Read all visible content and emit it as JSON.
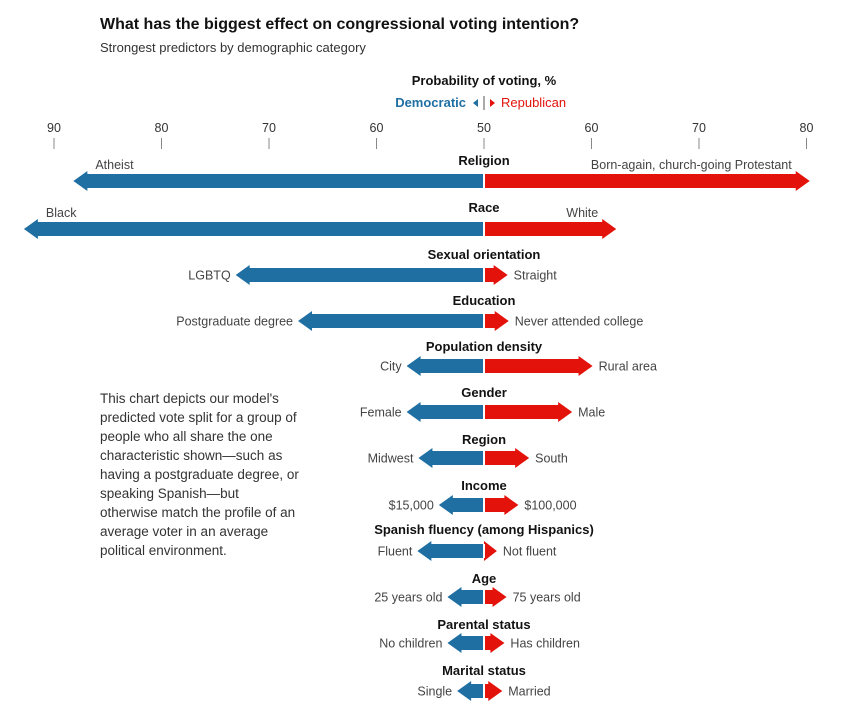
{
  "title": "What has the biggest effect on congressional voting intention?",
  "subtitle": "Strongest predictors by demographic category",
  "note": "This chart depicts our model's predicted vote split for a group of people who all share the one characteristic shown—such as having a postgraduate degree, or speaking Spanish—but otherwise match the profile of an average voter in an average political environment.",
  "chart_data": {
    "type": "bar",
    "subtype": "diverging-arrow",
    "axis_title": "Probability of voting, %",
    "legend": {
      "left": "Democratic",
      "right": "Republican",
      "placement": "top-center"
    },
    "colors": {
      "Democratic": "#1f6fa3",
      "Republican": "#e3120b"
    },
    "ticks_left": [
      90,
      80,
      70,
      60,
      50
    ],
    "ticks_right": [
      60,
      70,
      80
    ],
    "tick_labels": [
      "90",
      "80",
      "70",
      "60",
      "50",
      "60",
      "70",
      "80"
    ],
    "xlim_democratic": [
      90,
      50
    ],
    "xlim_republican": [
      50,
      80
    ],
    "categories": [
      {
        "name": "Religion",
        "dem_label": "Atheist",
        "dem": 88.2,
        "rep_label": "Born-again, church-going Protestant",
        "rep": 80.3
      },
      {
        "name": "Race",
        "dem_label": "Black",
        "dem": 92.8,
        "rep_label": "White",
        "rep": 62.3
      },
      {
        "name": "Sexual orientation",
        "dem_label": "LGBTQ",
        "dem": 73.1,
        "rep_label": "Straight",
        "rep": 52.2
      },
      {
        "name": "Education",
        "dem_label": "Postgraduate degree",
        "dem": 67.3,
        "rep_label": "Never attended college",
        "rep": 52.3
      },
      {
        "name": "Population density",
        "dem_label": "City",
        "dem": 57.2,
        "rep_label": "Rural area",
        "rep": 60.1
      },
      {
        "name": "Gender",
        "dem_label": "Female",
        "dem": 57.2,
        "rep_label": "Male",
        "rep": 58.2
      },
      {
        "name": "Region",
        "dem_label": "Midwest",
        "dem": 56.1,
        "rep_label": "South",
        "rep": 54.2
      },
      {
        "name": "Income",
        "dem_label": "$15,000",
        "dem": 54.2,
        "rep_label": "$100,000",
        "rep": 53.2
      },
      {
        "name": "Spanish fluency (among Hispanics)",
        "dem_label": "Fluent",
        "dem": 56.2,
        "rep_label": "Not fluent",
        "rep": 51.2
      },
      {
        "name": "Age",
        "dem_label": "25 years old",
        "dem": 53.4,
        "rep_label": "75 years old",
        "rep": 52.1
      },
      {
        "name": "Parental status",
        "dem_label": "No children",
        "dem": 53.4,
        "rep_label": "Has children",
        "rep": 51.9
      },
      {
        "name": "Marital status",
        "dem_label": "Single",
        "dem": 52.5,
        "rep_label": "Married",
        "rep": 51.7
      }
    ],
    "grid": false
  }
}
